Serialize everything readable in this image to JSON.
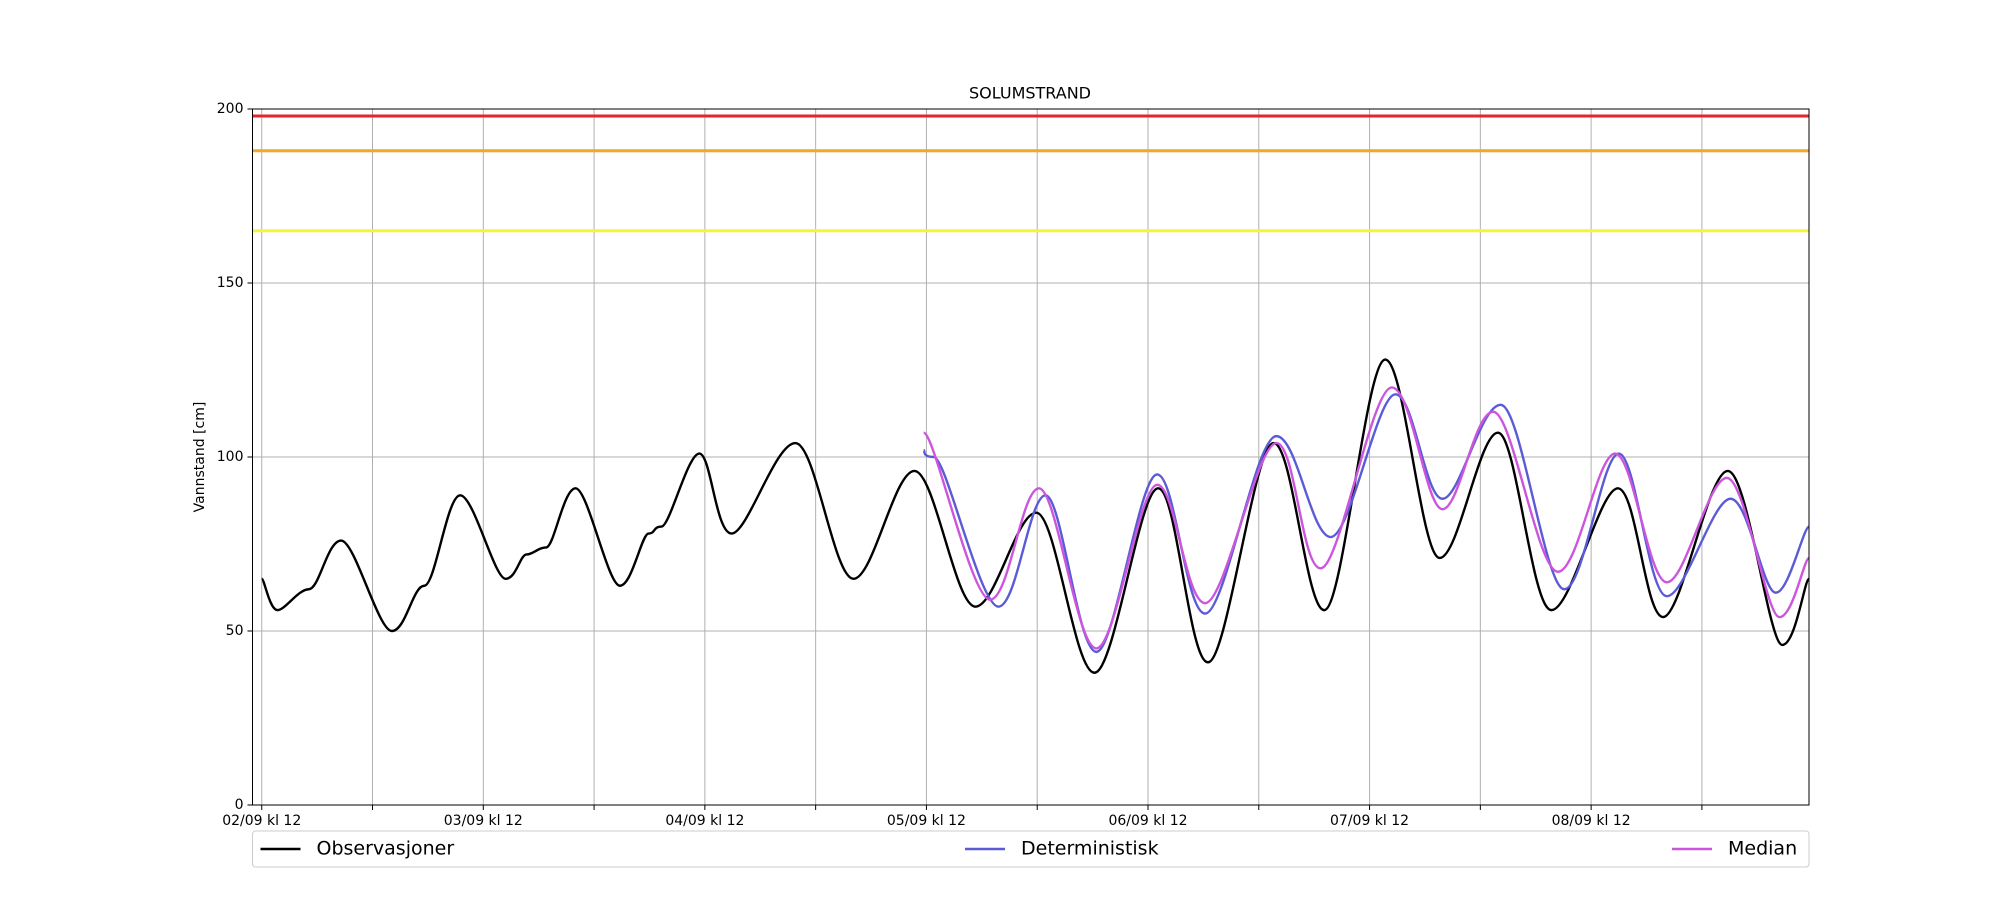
{
  "chart_data": {
    "type": "line",
    "title": "SOLUMSTRAND",
    "ylabel": "Vannstand [cm]",
    "xlim": [
      -1,
      167.6
    ],
    "ylim": [
      0,
      200
    ],
    "yticks": [
      0,
      50,
      100,
      150,
      200
    ],
    "xticks": [
      {
        "value": 0,
        "label": "02/09 kl 12"
      },
      {
        "value": 24,
        "label": "03/09 kl 12"
      },
      {
        "value": 48,
        "label": "04/09 kl 12"
      },
      {
        "value": 72,
        "label": "05/09 kl 12"
      },
      {
        "value": 96,
        "label": "06/09 kl 12"
      },
      {
        "value": 120,
        "label": "07/09 kl 12"
      },
      {
        "value": 144,
        "label": "08/09 kl 12"
      }
    ],
    "xminor_ticks": [
      12,
      36,
      60,
      84,
      108,
      132,
      156
    ],
    "grid": true,
    "thresholds": [
      {
        "value": 198,
        "color": "#e8242b"
      },
      {
        "value": 188,
        "color": "#f5a623"
      },
      {
        "value": 165,
        "color": "#f5f532"
      }
    ],
    "series": [
      {
        "name": "Observasjoner",
        "color": "#000000",
        "x": [
          0,
          1.7,
          5.1,
          8.6,
          14.1,
          17.6,
          21.5,
          26.4,
          28.7,
          30.8,
          34,
          38.8,
          41.9,
          43.3,
          47.4,
          50.9,
          57.8,
          64.1,
          70.7,
          77.3,
          83.9,
          90.2,
          97.1,
          102.5,
          109.6,
          115.1,
          121.7,
          127.6,
          133.9,
          139.7,
          146.9,
          151.8,
          158.8,
          164.7,
          167.6
        ],
        "values": [
          65,
          56,
          62,
          76,
          50,
          63,
          89,
          65,
          72,
          74,
          91,
          63,
          78,
          80,
          101,
          78,
          104,
          65,
          96,
          57,
          84,
          38,
          91,
          41,
          104,
          56,
          128,
          71,
          107,
          56,
          91,
          54,
          96,
          46,
          65
        ]
      },
      {
        "name": "Deterministisk",
        "color": "#5b5bd6",
        "x": [
          71.7,
          72.8,
          79.8,
          84.9,
          90.4,
          97,
          102.2,
          109.9,
          115.8,
          122.8,
          127.9,
          134.2,
          141.1,
          147,
          152.2,
          159.1,
          164,
          167.6
        ],
        "values": [
          102,
          100,
          57,
          89,
          44,
          95,
          55,
          106,
          77,
          118,
          88,
          115,
          62,
          101,
          60,
          88,
          61,
          80
        ]
      },
      {
        "name": "Median",
        "color": "#cc55dd",
        "x": [
          71.7,
          78.9,
          84.2,
          90.4,
          97,
          102.2,
          109.9,
          114.7,
          122.4,
          127.9,
          133.4,
          140.4,
          146.6,
          152.2,
          158.7,
          164.4,
          167.6
        ],
        "values": [
          107,
          59,
          91,
          45,
          92,
          58,
          104,
          68,
          120,
          85,
          113,
          67,
          101,
          64,
          94,
          54,
          71
        ]
      }
    ]
  }
}
